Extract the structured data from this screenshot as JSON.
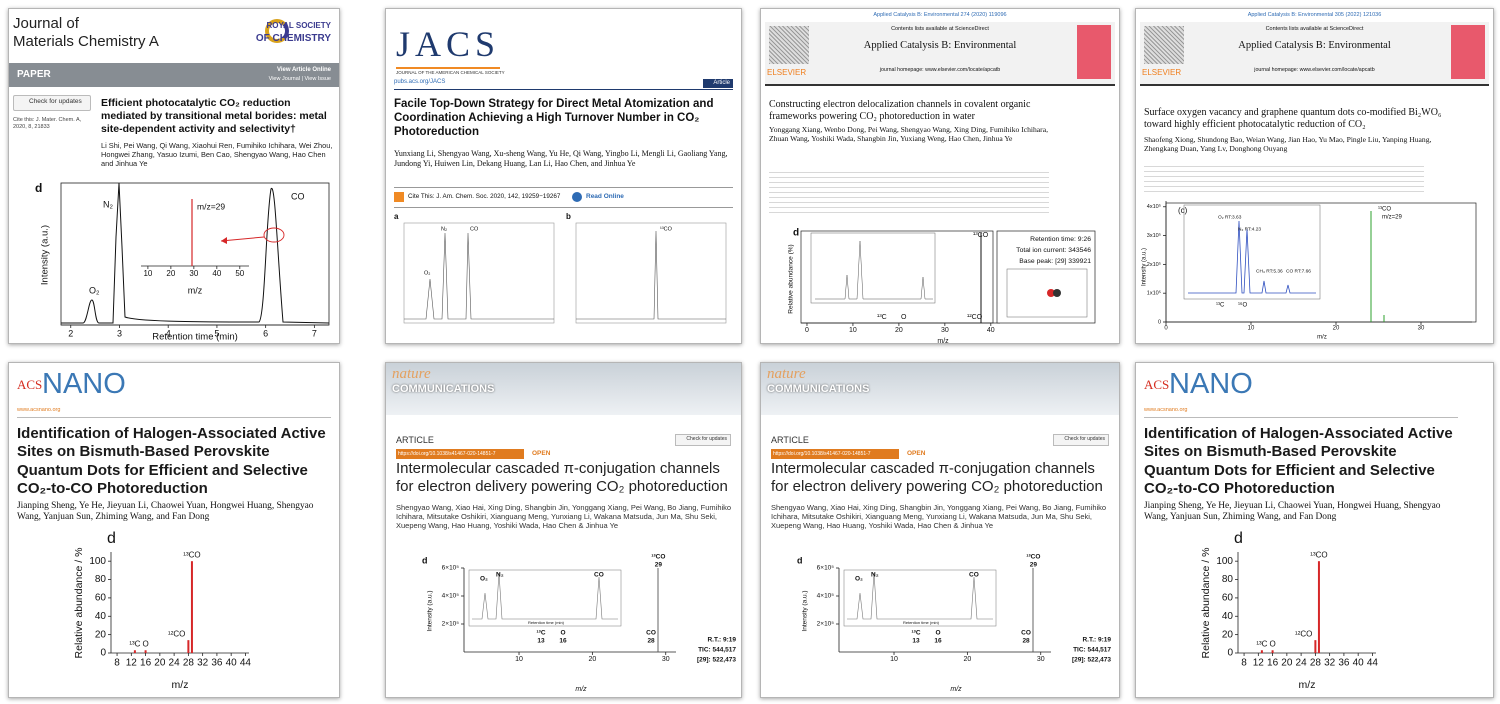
{
  "panels": [
    {
      "journal": [
        "Journal of",
        "Materials Chemistry A"
      ],
      "publisher": [
        "ROYAL SOCIETY",
        "OF CHEMISTRY"
      ],
      "section": "PAPER",
      "links": [
        "View Article Online",
        "View Journal | View Issue"
      ],
      "updates": "Check for updates",
      "cite": "Cite this: J. Mater. Chem. A, 2020, 8, 21833",
      "title": "Efficient photocatalytic CO₂ reduction mediated by transitional metal borides: metal site-dependent activity and selectivity†",
      "authors": "Li Shi, Pei Wang, Qi Wang, Xiaohui Ren, Fumihiko Ichihara, Wei Zhou, Hongwei Zhang, Yasuo Izumi, Ben Cao, Shengyao Wang, Hao Chen and Jinhua Ye",
      "chart": {
        "label": "d",
        "ylabel": "Intensity (a.u.)",
        "xlabel": "Retention time (min)",
        "xlim": [
          1.8,
          7.3
        ],
        "xticks": [
          2,
          3,
          4,
          5,
          6,
          7
        ],
        "peaks": [
          "O₂",
          "N₂",
          "CO"
        ],
        "inset": {
          "annotation": "m/z=29",
          "xlabel": "m/z",
          "xlim": [
            7,
            54
          ],
          "xticks": [
            10,
            20,
            30,
            40,
            50
          ]
        }
      }
    },
    {
      "journal": "JACS",
      "journal_full": "JOURNAL OF THE AMERICAN CHEMICAL SOCIETY",
      "url": "pubs.acs.org/JACS",
      "section": "Article",
      "title": "Facile Top-Down Strategy for Direct Metal Atomization and Coordination Achieving a High Turnover Number in CO₂ Photoreduction",
      "authors": "Yunxiang Li, Shengyao Wang, Xu-sheng Wang, Yu He, Qi Wang, Yingbo Li, Mengli Li, Gaoliang Yang, Jundong Yi, Huiwen Lin, Dekang Huang, Lan Li, Hao Chen, and Jinhua Ye",
      "cite": "Cite This: J. Am. Chem. Soc. 2020, 142, 19259−19267",
      "read": "Read Online",
      "charts": [
        {
          "label": "a",
          "peaks": [
            "O₂",
            "N₂",
            "CO"
          ]
        },
        {
          "label": "b",
          "peaks": [
            "¹³CO"
          ]
        }
      ]
    },
    {
      "citation": "Applied Catalysis B: Environmental 274 (2020) 119096",
      "contents": "Contents lists available at ScienceDirect",
      "journal": "Applied Catalysis B: Environmental",
      "homepage": "journal homepage: www.elsevier.com/locate/apcatb",
      "publisher": "ELSEVIER",
      "title": "Constructing electron delocalization channels in covalent organic frameworks powering CO₂ photoreduction in water",
      "authors": "Yonggang Xiang, Wenbo Dong, Pei Wang, Shengyao Wang, Xing Ding, Fumihiko Ichihara, Zhuan Wang, Yoshiki Wada, Shangbin Jin, Yuxiang Weng, Hao Chen, Jinhua Ye",
      "chart": {
        "label": "d",
        "ylabel": "Relative abundance (%)",
        "xlabel": "m/z",
        "xlim": [
          -1.3,
          42
        ],
        "xticks": [
          0,
          10,
          20,
          30,
          40
        ],
        "peaks": [
          "¹³CO",
          "¹³C",
          "O",
          "¹²CO"
        ],
        "info": [
          "Retention time: 9:26",
          "Total ion current: 343546",
          "Base peak: [29] 339921"
        ]
      }
    },
    {
      "citation": "Applied Catalysis B: Environmental 305 (2022) 121036",
      "contents": "Contents lists available at ScienceDirect",
      "journal": "Applied Catalysis B: Environmental",
      "homepage": "journal homepage: www.elsevier.com/locate/apcatb",
      "publisher": "ELSEVIER",
      "title": "Surface oxygen vacancy and graphene quantum dots co-modified Bi₂WO₆ toward highly efficient photocatalytic reduction of CO₂",
      "authors": "Shaofeng Xiong, Shundong Bao, Weian Wang, Jian Hao, Yu Mao, Pingle Liu, Yanping Huang, Zhengkang Duan, Yang Lv, Donghong Ouyang",
      "chart": {
        "label": "(c)",
        "ylabel": "Intensity (a.u.)",
        "xlabel": "m/z",
        "xlim": [
          0,
          36
        ],
        "xticks": [
          0,
          10,
          20,
          30
        ],
        "ylim": [
          0,
          420000
        ],
        "yticks": [
          0,
          {
            "value": 100000,
            "label": "1x10⁵"
          },
          {
            "value": 200000,
            "label": "2x10⁵"
          },
          {
            "value": 300000,
            "label": "3x10⁵"
          },
          {
            "value": 400000,
            "label": "4x10⁵"
          }
        ],
        "peaks": [
          "¹³CO",
          "m/z=29",
          "¹³C",
          "¹⁶O"
        ],
        "inset": [
          "O₂ RT:3.63",
          "N₂ RT:4.23",
          "CH₄ RT:5.36",
          "CO RT:7.66"
        ]
      }
    },
    {
      "journal": [
        "ACS",
        "NANO"
      ],
      "url": "www.acsnano.org",
      "title": "Identification of Halogen-Associated Active Sites on Bismuth-Based Perovskite Quantum Dots for Efficient and Selective CO₂-to-CO Photoreduction",
      "authors": "Jianping Sheng, Ye He, Jieyuan Li, Chaowei Yuan, Hongwei Huang, Shengyao Wang, Yanjuan Sun, Zhiming Wang, and Fan Dong",
      "chart": {
        "label": "d",
        "ylabel": "Relative abundance / %",
        "xlabel": "m/z",
        "xlim": [
          6.3,
          45
        ],
        "xticks": [
          8,
          12,
          16,
          20,
          24,
          28,
          32,
          36,
          40,
          44
        ],
        "ylim": [
          0,
          110
        ],
        "yticks": [
          0,
          20,
          40,
          60,
          80,
          100
        ],
        "x": [
          13,
          16,
          28,
          29
        ],
        "values": [
          3,
          3,
          14,
          100
        ],
        "labels": [
          "¹³C",
          "O",
          "¹²CO",
          "¹³CO"
        ],
        "color": "#d62728"
      }
    },
    {
      "journal": [
        "nature",
        "COMMUNICATIONS"
      ],
      "section": "ARTICLE",
      "doi": "https://doi.org/10.1038/s41467-020-14851-7",
      "access": "OPEN",
      "updates": "Check for updates",
      "title": "Intermolecular cascaded π-conjugation channels for electron delivery powering CO₂ photoreduction",
      "authors": "Shengyao Wang, Xiao Hai, Xing Ding, Shangbin Jin, Yonggang Xiang, Pei Wang, Bo Jiang, Fumihiko Ichihara, Mitsutake Oshikiri, Xianguang Meng, Yunxiang Li, Wakana Matsuda, Jun Ma, Shu Seki, Xuepeng Wang, Hao Huang, Yoshiki Wada, Hao Chen & Jinhua Ye",
      "chart": {
        "label": "d",
        "ylabel": "Intensity (a.u.)",
        "xlabel": "m/z",
        "xlim": [
          2.5,
          31.4
        ],
        "xticks": [
          10,
          20,
          30
        ],
        "ylim": [
          0,
          600000
        ],
        "yticks": [
          {
            "value": 200000,
            "label": "2×10⁵"
          },
          {
            "value": 400000,
            "label": "4×10⁵"
          },
          {
            "value": 600000,
            "label": "6×10⁵"
          }
        ],
        "peaks": [
          "O₂",
          "N₂",
          "CO",
          "¹³CO",
          "¹³C",
          "O",
          "CO"
        ],
        "peak_mz": [
          29,
          13,
          16,
          28
        ],
        "inset_xlabel": "Retention time (min)",
        "info": [
          "R.T.: 9:19",
          "TIC: 544,517",
          "[29]: 522,473"
        ]
      }
    },
    {
      "journal": [
        "nature",
        "COMMUNICATIONS"
      ],
      "section": "ARTICLE",
      "doi": "https://doi.org/10.1038/s41467-020-14851-7",
      "access": "OPEN",
      "updates": "Check for updates",
      "title": "Intermolecular cascaded π-conjugation channels for electron delivery powering CO₂ photoreduction",
      "authors": "Shengyao Wang, Xiao Hai, Xing Ding, Shangbin Jin, Yonggang Xiang, Pei Wang, Bo Jiang, Fumihiko Ichihara, Mitsutake Oshikiri, Xianguang Meng, Yunxiang Li, Wakana Matsuda, Jun Ma, Shu Seki, Xuepeng Wang, Hao Huang, Yoshiki Wada, Hao Chen & Jinhua Ye",
      "chart": {
        "label": "d",
        "ylabel": "Intensity (a.u.)",
        "xlabel": "m/z",
        "xlim": [
          2.5,
          31.4
        ],
        "xticks": [
          10,
          20,
          30
        ],
        "ylim": [
          0,
          600000
        ],
        "yticks": [
          {
            "value": 200000,
            "label": "2×10⁵"
          },
          {
            "value": 400000,
            "label": "4×10⁵"
          },
          {
            "value": 600000,
            "label": "6×10⁵"
          }
        ],
        "peaks": [
          "O₂",
          "N₂",
          "CO",
          "¹³CO",
          "¹³C",
          "O",
          "CO"
        ],
        "peak_mz": [
          29,
          13,
          16,
          28
        ],
        "inset_xlabel": "Retention time (min)",
        "info": [
          "R.T.: 9:19",
          "TIC: 544,517",
          "[29]: 522,473"
        ]
      }
    },
    {
      "journal": [
        "ACS",
        "NANO"
      ],
      "url": "www.acsnano.org",
      "title": "Identification of Halogen-Associated Active Sites on Bismuth-Based Perovskite Quantum Dots for Efficient and Selective CO₂-to-CO Photoreduction",
      "authors": "Jianping Sheng, Ye He, Jieyuan Li, Chaowei Yuan, Hongwei Huang, Shengyao Wang, Yanjuan Sun, Zhiming Wang, and Fan Dong",
      "chart": {
        "label": "d",
        "ylabel": "Relative abundance / %",
        "xlabel": "m/z",
        "xlim": [
          6.3,
          45
        ],
        "xticks": [
          8,
          12,
          16,
          20,
          24,
          28,
          32,
          36,
          40,
          44
        ],
        "ylim": [
          0,
          110
        ],
        "yticks": [
          0,
          20,
          40,
          60,
          80,
          100
        ],
        "x": [
          13,
          16,
          28,
          29
        ],
        "values": [
          3,
          3,
          14,
          100
        ],
        "labels": [
          "¹³C",
          "O",
          "¹²CO",
          "¹³CO"
        ],
        "color": "#d62728"
      }
    }
  ]
}
